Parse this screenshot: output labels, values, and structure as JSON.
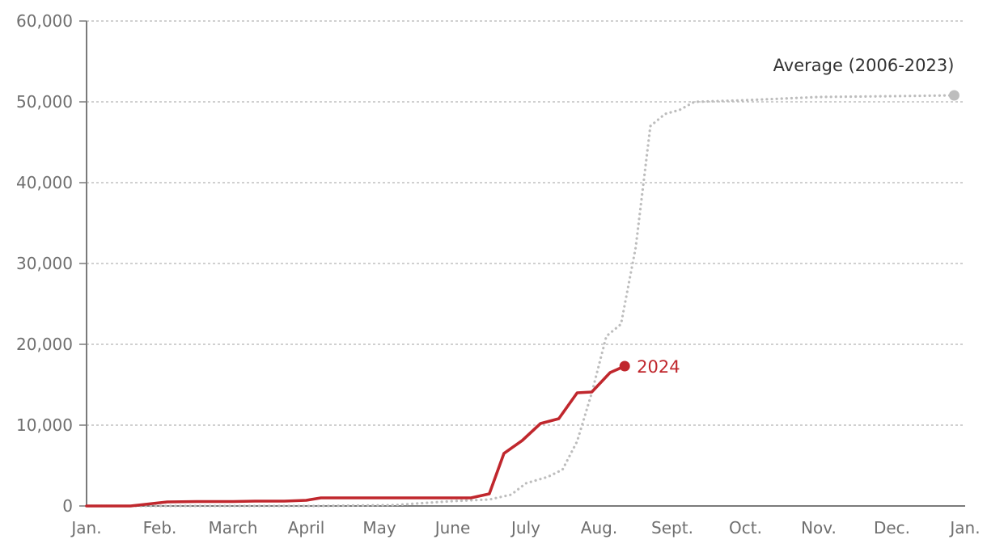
{
  "chart_data": {
    "type": "line",
    "title": "",
    "xlabel": "",
    "ylabel": "",
    "x_unit": "month",
    "xlim": [
      0,
      12
    ],
    "ylim": [
      0,
      60000
    ],
    "grid": true,
    "legend": "direct-labels",
    "x_ticks": [
      {
        "value": 0,
        "label": "Jan."
      },
      {
        "value": 1,
        "label": "Feb."
      },
      {
        "value": 2,
        "label": "March"
      },
      {
        "value": 3,
        "label": "April"
      },
      {
        "value": 4,
        "label": "May"
      },
      {
        "value": 5,
        "label": "June"
      },
      {
        "value": 6,
        "label": "July"
      },
      {
        "value": 7,
        "label": "Aug."
      },
      {
        "value": 8,
        "label": "Sept."
      },
      {
        "value": 9,
        "label": "Oct."
      },
      {
        "value": 10,
        "label": "Nov."
      },
      {
        "value": 11,
        "label": "Dec."
      },
      {
        "value": 12,
        "label": "Jan."
      }
    ],
    "y_ticks": [
      {
        "value": 0,
        "label": "0"
      },
      {
        "value": 10000,
        "label": "10,000"
      },
      {
        "value": 20000,
        "label": "20,000"
      },
      {
        "value": 30000,
        "label": "30,000"
      },
      {
        "value": 40000,
        "label": "40,000"
      },
      {
        "value": 50000,
        "label": "50,000"
      },
      {
        "value": 60000,
        "label": "60,000"
      }
    ],
    "series": [
      {
        "name": "Average (2006-2023)",
        "color": "#bdbdbd",
        "style": "dotted",
        "points": [
          [
            0.0,
            0
          ],
          [
            2.0,
            0
          ],
          [
            3.1,
            0
          ],
          [
            4.2,
            100
          ],
          [
            4.5,
            300
          ],
          [
            5.0,
            600
          ],
          [
            5.5,
            800
          ],
          [
            5.8,
            1400
          ],
          [
            6.0,
            2800
          ],
          [
            6.3,
            3600
          ],
          [
            6.5,
            4500
          ],
          [
            6.7,
            8000
          ],
          [
            6.9,
            14000
          ],
          [
            7.1,
            21000
          ],
          [
            7.3,
            22500
          ],
          [
            7.5,
            32000
          ],
          [
            7.7,
            47000
          ],
          [
            7.9,
            48500
          ],
          [
            8.1,
            49000
          ],
          [
            8.3,
            50000
          ],
          [
            9.0,
            50200
          ],
          [
            10.0,
            50600
          ],
          [
            11.0,
            50700
          ],
          [
            11.85,
            50800
          ]
        ]
      },
      {
        "name": "2024",
        "color": "#c0272d",
        "style": "solid",
        "points": [
          [
            0.0,
            0
          ],
          [
            0.6,
            0
          ],
          [
            1.1,
            500
          ],
          [
            1.5,
            550
          ],
          [
            2.0,
            550
          ],
          [
            2.3,
            600
          ],
          [
            2.7,
            600
          ],
          [
            3.0,
            700
          ],
          [
            3.2,
            1000
          ],
          [
            3.6,
            1000
          ],
          [
            4.0,
            1000
          ],
          [
            4.5,
            1000
          ],
          [
            5.0,
            1000
          ],
          [
            5.25,
            1000
          ],
          [
            5.5,
            1500
          ],
          [
            5.7,
            6500
          ],
          [
            5.95,
            8100
          ],
          [
            6.2,
            10200
          ],
          [
            6.45,
            10800
          ],
          [
            6.7,
            14000
          ],
          [
            6.9,
            14100
          ],
          [
            7.15,
            16500
          ],
          [
            7.35,
            17300
          ]
        ]
      }
    ]
  }
}
